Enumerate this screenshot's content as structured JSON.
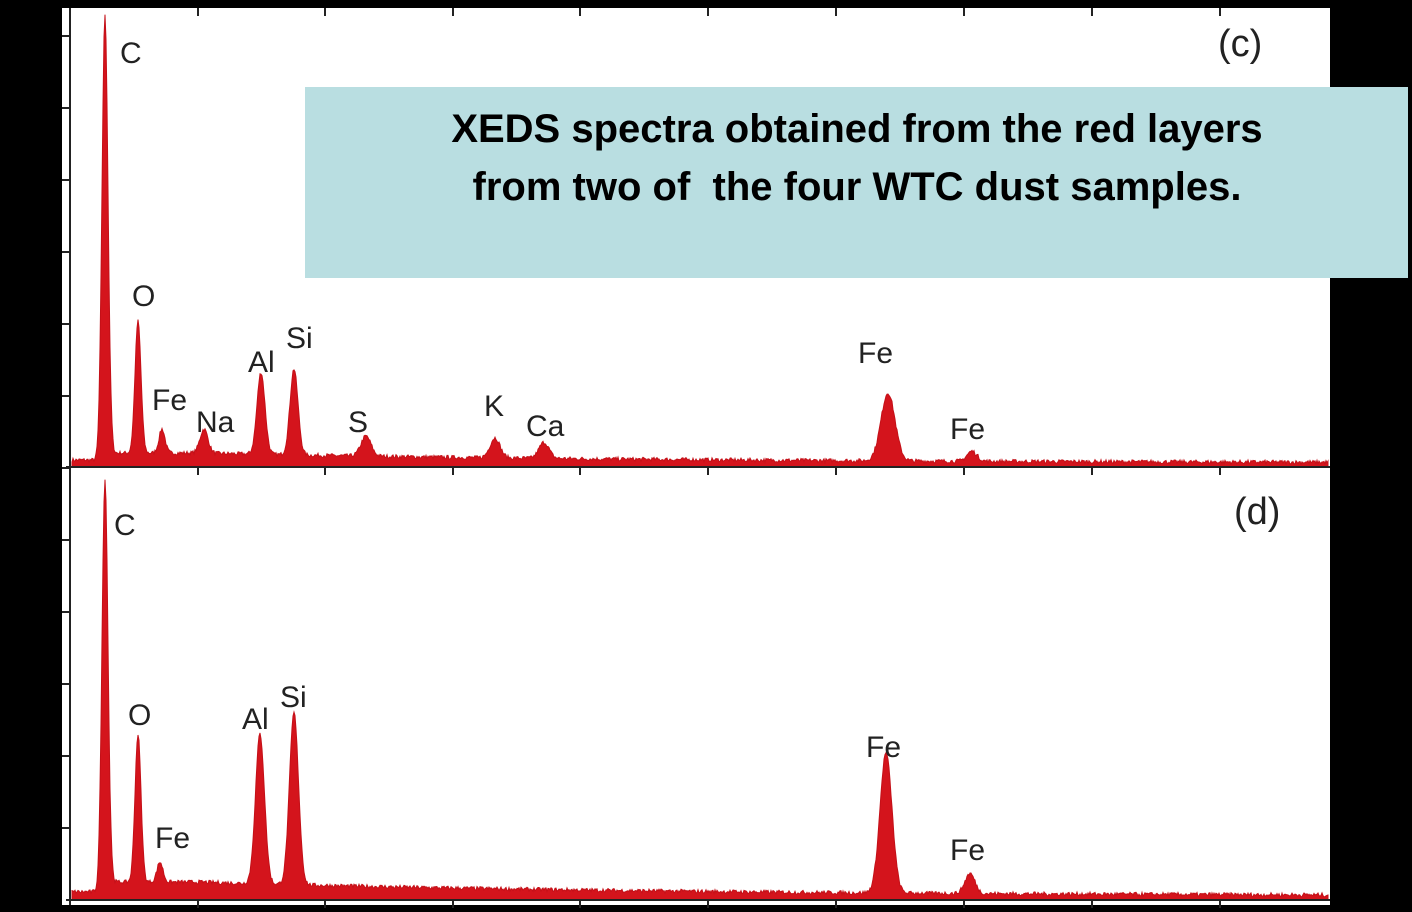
{
  "title_box": {
    "lines": [
      "XEDS spectra obtained from the red layers",
      "from two of  the four WTC dust samples."
    ]
  },
  "panels": [
    {
      "label": "(c)",
      "peaks": [
        "C",
        "O",
        "Fe",
        "Na",
        "Al",
        "Si",
        "S",
        "K",
        "Ca",
        "Fe",
        "Fe"
      ]
    },
    {
      "label": "(d)",
      "peaks": [
        "C",
        "O",
        "Fe",
        "Al",
        "Si",
        "Fe",
        "Fe"
      ]
    }
  ]
}
